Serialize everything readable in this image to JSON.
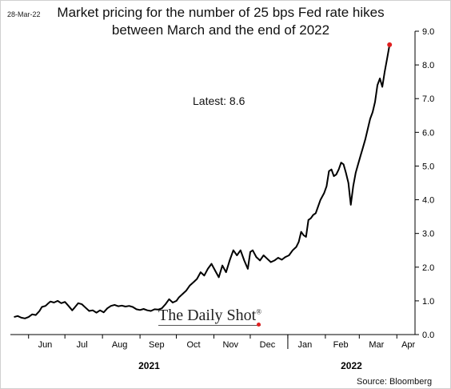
{
  "date_stamp": "28-Mar-22",
  "title_line1": "Market pricing for the number of 25 bps Fed rate hikes",
  "title_line2": "between March and the end of 2022",
  "annotation": "Latest:  8.6",
  "watermark": "The Daily Shot",
  "watermark_mark": "®",
  "source": "Source: Bloomberg",
  "colors": {
    "line": "#000000",
    "latest_point": "#e02020",
    "axis": "#000000"
  },
  "chart_data": {
    "type": "line",
    "title": "Market pricing for the number of 25 bps Fed rate hikes between March and the end of 2022",
    "xlabel": "",
    "ylabel": "",
    "ylim": [
      0,
      9
    ],
    "y_ticks": [
      "0.0",
      "1.0",
      "2.0",
      "3.0",
      "4.0",
      "5.0",
      "6.0",
      "7.0",
      "8.0",
      "9.0"
    ],
    "x_ticks": [
      "Jun",
      "Jul",
      "Aug",
      "Sep",
      "Oct",
      "Nov",
      "Dec",
      "Jan",
      "Feb",
      "Mar",
      "Apr"
    ],
    "year_labels": [
      "2021",
      "2022"
    ],
    "grid": false,
    "latest_value": 8.6,
    "series": [
      {
        "values": [
          [
            "2021-05-20",
            0.52
          ],
          [
            "2021-05-23",
            0.55
          ],
          [
            "2021-05-26",
            0.5
          ],
          [
            "2021-05-29",
            0.48
          ],
          [
            "2021-06-01",
            0.52
          ],
          [
            "2021-06-04",
            0.6
          ],
          [
            "2021-06-07",
            0.58
          ],
          [
            "2021-06-10",
            0.7
          ],
          [
            "2021-06-12",
            0.82
          ],
          [
            "2021-06-15",
            0.85
          ],
          [
            "2021-06-17",
            0.92
          ],
          [
            "2021-06-19",
            0.98
          ],
          [
            "2021-06-22",
            0.95
          ],
          [
            "2021-06-25",
            1.0
          ],
          [
            "2021-06-28",
            0.93
          ],
          [
            "2021-07-01",
            0.97
          ],
          [
            "2021-07-04",
            0.85
          ],
          [
            "2021-07-07",
            0.72
          ],
          [
            "2021-07-09",
            0.8
          ],
          [
            "2021-07-12",
            0.93
          ],
          [
            "2021-07-15",
            0.9
          ],
          [
            "2021-07-18",
            0.8
          ],
          [
            "2021-07-21",
            0.7
          ],
          [
            "2021-07-24",
            0.72
          ],
          [
            "2021-07-27",
            0.65
          ],
          [
            "2021-07-30",
            0.72
          ],
          [
            "2021-08-02",
            0.66
          ],
          [
            "2021-08-05",
            0.78
          ],
          [
            "2021-08-08",
            0.85
          ],
          [
            "2021-08-11",
            0.88
          ],
          [
            "2021-08-14",
            0.84
          ],
          [
            "2021-08-17",
            0.86
          ],
          [
            "2021-08-20",
            0.83
          ],
          [
            "2021-08-23",
            0.85
          ],
          [
            "2021-08-26",
            0.82
          ],
          [
            "2021-08-29",
            0.75
          ],
          [
            "2021-09-01",
            0.73
          ],
          [
            "2021-09-04",
            0.76
          ],
          [
            "2021-09-07",
            0.72
          ],
          [
            "2021-09-10",
            0.7
          ],
          [
            "2021-09-13",
            0.75
          ],
          [
            "2021-09-16",
            0.74
          ],
          [
            "2021-09-19",
            0.78
          ],
          [
            "2021-09-22",
            0.9
          ],
          [
            "2021-09-25",
            1.05
          ],
          [
            "2021-09-28",
            0.95
          ],
          [
            "2021-10-01",
            1.0
          ],
          [
            "2021-10-03",
            1.1
          ],
          [
            "2021-10-06",
            1.2
          ],
          [
            "2021-10-09",
            1.3
          ],
          [
            "2021-10-12",
            1.45
          ],
          [
            "2021-10-15",
            1.55
          ],
          [
            "2021-10-18",
            1.65
          ],
          [
            "2021-10-21",
            1.85
          ],
          [
            "2021-10-24",
            1.75
          ],
          [
            "2021-10-27",
            1.95
          ],
          [
            "2021-10-30",
            2.1
          ],
          [
            "2021-11-02",
            1.9
          ],
          [
            "2021-11-05",
            1.7
          ],
          [
            "2021-11-08",
            2.05
          ],
          [
            "2021-11-11",
            1.85
          ],
          [
            "2021-11-14",
            2.2
          ],
          [
            "2021-11-17",
            2.5
          ],
          [
            "2021-11-20",
            2.35
          ],
          [
            "2021-11-23",
            2.5
          ],
          [
            "2021-11-26",
            2.2
          ],
          [
            "2021-11-29",
            1.95
          ],
          [
            "2021-12-01",
            2.45
          ],
          [
            "2021-12-03",
            2.5
          ],
          [
            "2021-12-06",
            2.3
          ],
          [
            "2021-12-09",
            2.2
          ],
          [
            "2021-12-12",
            2.35
          ],
          [
            "2021-12-15",
            2.25
          ],
          [
            "2021-12-18",
            2.15
          ],
          [
            "2021-12-21",
            2.2
          ],
          [
            "2021-12-24",
            2.28
          ],
          [
            "2021-12-27",
            2.22
          ],
          [
            "2021-12-30",
            2.3
          ],
          [
            "2022-01-02",
            2.35
          ],
          [
            "2022-01-05",
            2.5
          ],
          [
            "2022-01-08",
            2.6
          ],
          [
            "2022-01-10",
            2.75
          ],
          [
            "2022-01-12",
            3.05
          ],
          [
            "2022-01-14",
            2.95
          ],
          [
            "2022-01-16",
            2.9
          ],
          [
            "2022-01-18",
            3.4
          ],
          [
            "2022-01-20",
            3.45
          ],
          [
            "2022-01-22",
            3.55
          ],
          [
            "2022-01-24",
            3.6
          ],
          [
            "2022-01-26",
            3.8
          ],
          [
            "2022-01-28",
            4.0
          ],
          [
            "2022-01-31",
            4.2
          ],
          [
            "2022-02-02",
            4.4
          ],
          [
            "2022-02-04",
            4.85
          ],
          [
            "2022-02-06",
            4.9
          ],
          [
            "2022-02-08",
            4.7
          ],
          [
            "2022-02-10",
            4.75
          ],
          [
            "2022-02-12",
            4.9
          ],
          [
            "2022-02-14",
            5.1
          ],
          [
            "2022-02-16",
            5.05
          ],
          [
            "2022-02-18",
            4.8
          ],
          [
            "2022-02-20",
            4.5
          ],
          [
            "2022-02-22",
            3.85
          ],
          [
            "2022-02-24",
            4.4
          ],
          [
            "2022-02-26",
            4.8
          ],
          [
            "2022-02-28",
            5.05
          ],
          [
            "2022-03-02",
            5.3
          ],
          [
            "2022-03-04",
            5.55
          ],
          [
            "2022-03-06",
            5.8
          ],
          [
            "2022-03-08",
            6.1
          ],
          [
            "2022-03-10",
            6.4
          ],
          [
            "2022-03-12",
            6.6
          ],
          [
            "2022-03-14",
            6.9
          ],
          [
            "2022-03-16",
            7.4
          ],
          [
            "2022-03-18",
            7.6
          ],
          [
            "2022-03-20",
            7.35
          ],
          [
            "2022-03-22",
            7.8
          ],
          [
            "2022-03-24",
            8.2
          ],
          [
            "2022-03-26",
            8.6
          ]
        ]
      }
    ]
  }
}
